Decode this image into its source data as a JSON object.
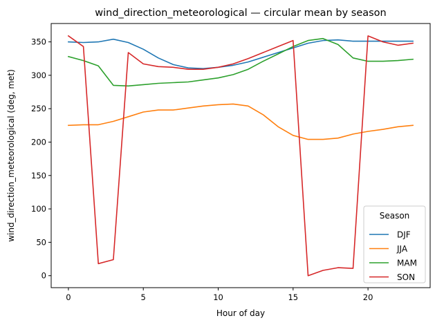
{
  "chart_data": {
    "type": "line",
    "title": "wind_direction_meteorological — circular mean by season",
    "xlabel": "Hour of day",
    "ylabel": "wind_direction_meteorological (deg, met)",
    "xlim": [
      -1.15,
      24.15
    ],
    "ylim": [
      -17.9,
      377.5
    ],
    "xticks": [
      0,
      5,
      10,
      15,
      20
    ],
    "yticks": [
      0,
      50,
      100,
      150,
      200,
      250,
      300,
      350
    ],
    "x": [
      0,
      1,
      2,
      3,
      4,
      5,
      6,
      7,
      8,
      9,
      10,
      11,
      12,
      13,
      14,
      15,
      16,
      17,
      18,
      19,
      20,
      21,
      22,
      23
    ],
    "legend": {
      "title": "Season",
      "position": "lower-right"
    },
    "series": [
      {
        "name": "DJF",
        "color": "#1f77b4",
        "values": [
          350,
          349,
          350,
          354,
          349,
          339,
          326,
          316,
          311,
          310,
          312,
          315,
          320,
          327,
          334,
          341,
          348,
          352,
          353,
          351,
          351,
          351,
          351,
          351
        ]
      },
      {
        "name": "JJA",
        "color": "#ff7f0e",
        "values": [
          225,
          226,
          226,
          231,
          238,
          245,
          248,
          248,
          251,
          254,
          256,
          257,
          254,
          241,
          223,
          210,
          204,
          204,
          206,
          212,
          216,
          219,
          223,
          225
        ]
      },
      {
        "name": "MAM",
        "color": "#2ca02c",
        "values": [
          328,
          322,
          314,
          285,
          284,
          286,
          288,
          289,
          290,
          293,
          296,
          301,
          309,
          321,
          332,
          343,
          352,
          355,
          346,
          326,
          321,
          321,
          322,
          324
        ]
      },
      {
        "name": "SON",
        "color": "#d62728",
        "values": [
          359,
          343,
          18,
          24,
          334,
          317,
          313,
          312,
          309,
          309,
          312,
          317,
          325,
          334,
          343,
          352,
          0,
          8,
          12,
          11,
          359,
          350,
          345,
          348
        ]
      }
    ]
  }
}
